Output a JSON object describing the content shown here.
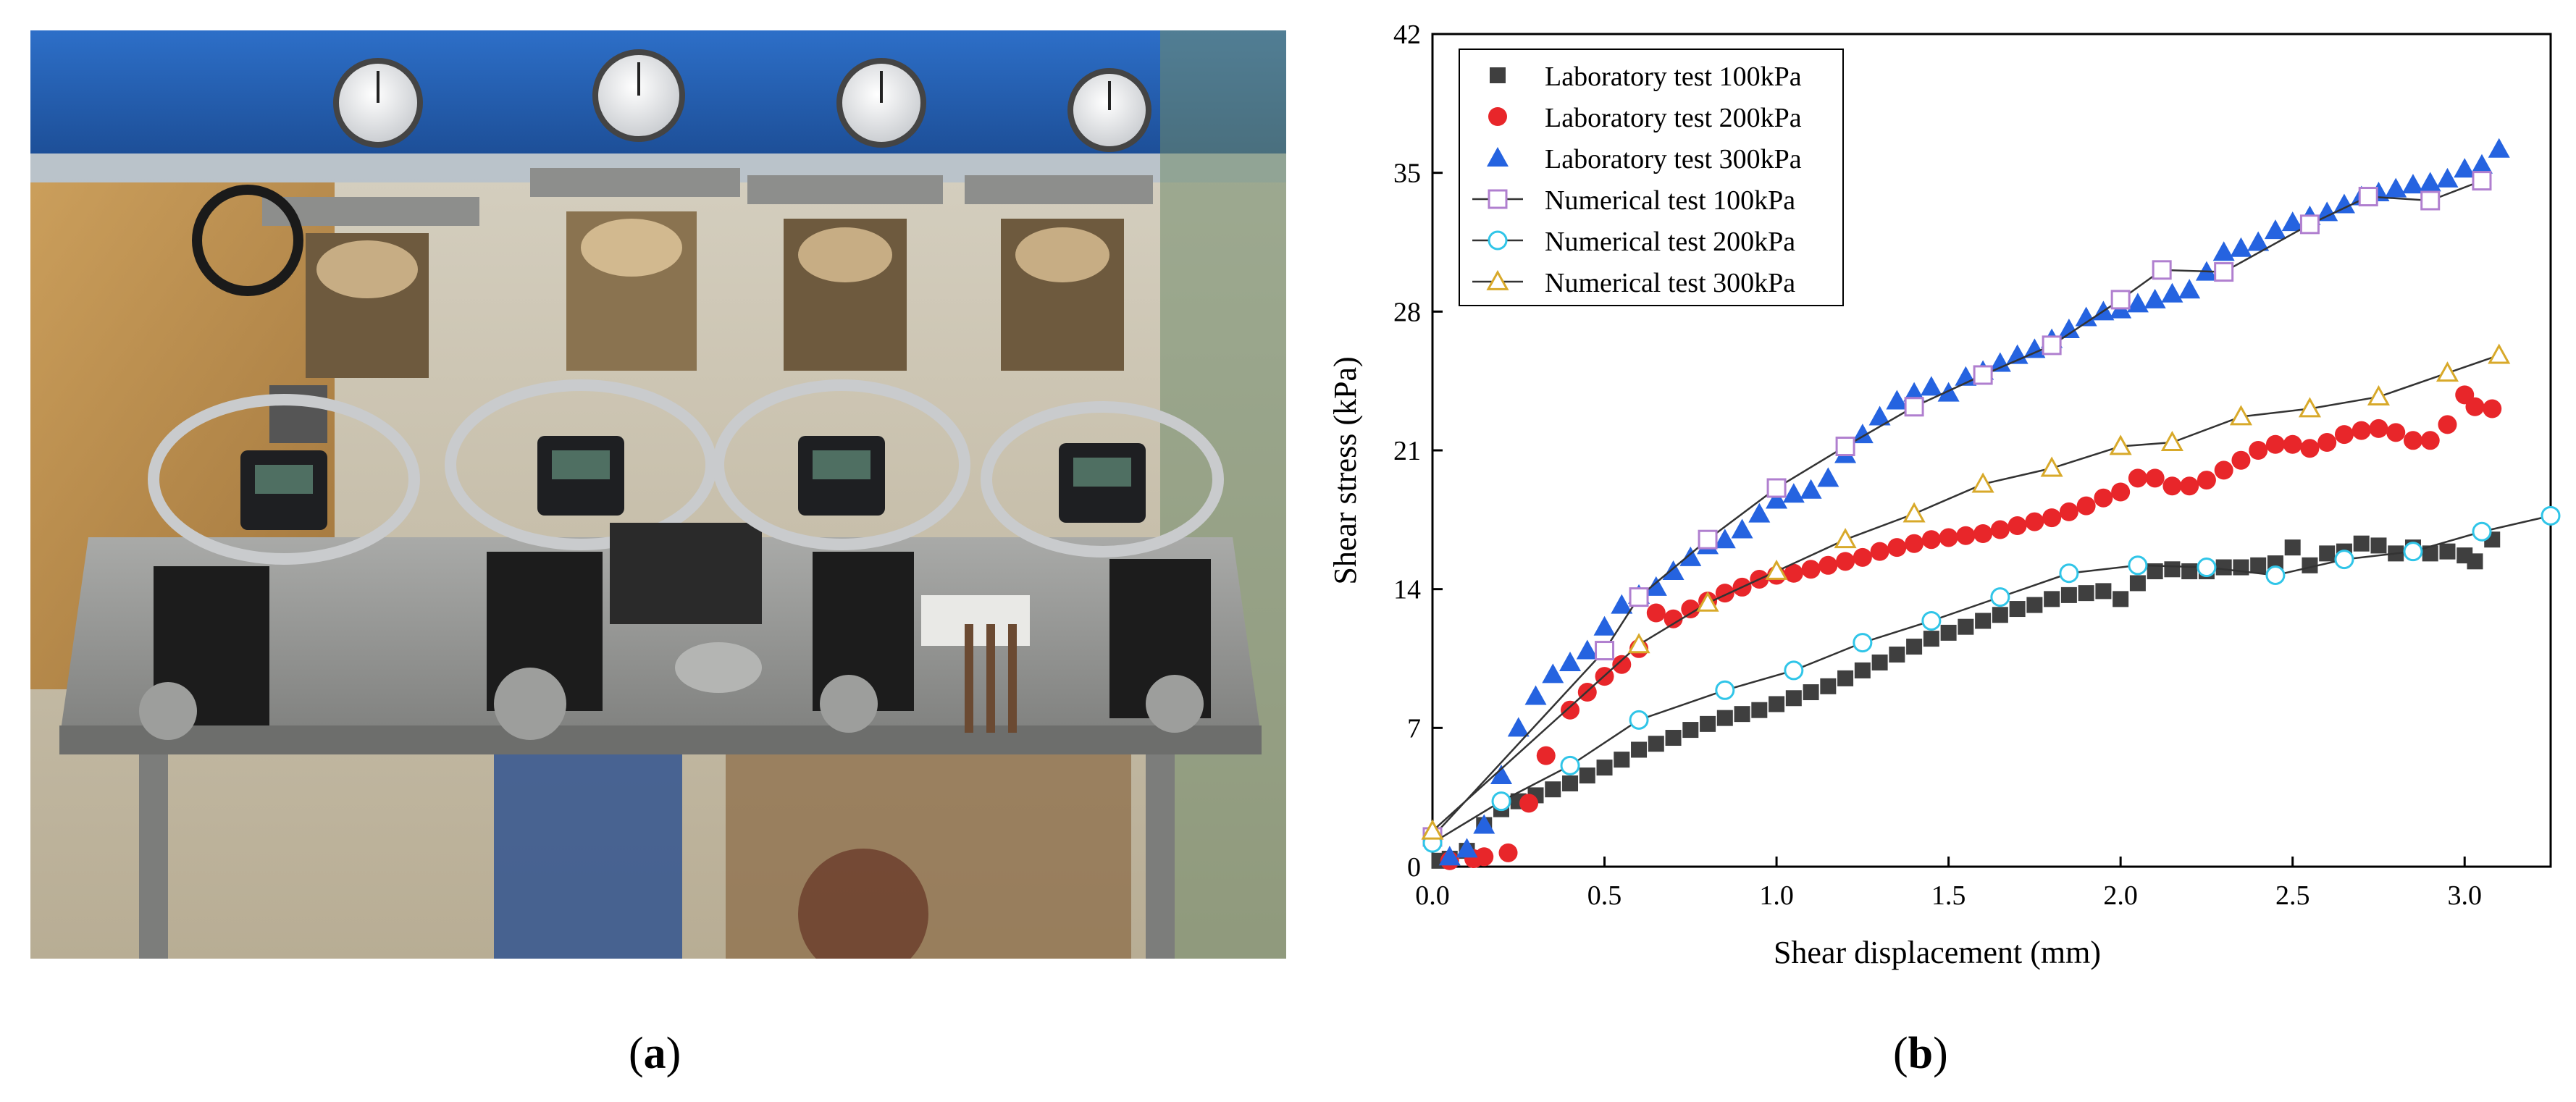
{
  "figure": {
    "panel_a_label": "a",
    "panel_b_label": "b",
    "photo_subject": "direct-shear-test-apparatus-photo"
  },
  "colors": {
    "lab_100": "#3f3f3f",
    "lab_200": "#e8262a",
    "lab_300": "#2563e0",
    "num_100": "#b07fcf",
    "num_200": "#30c5e8",
    "num_300": "#d8a92a",
    "num_line": "#333333"
  },
  "chart_data": {
    "type": "scatter",
    "xlabel": "Shear displacement (mm)",
    "ylabel": "Shear stress (kPa)",
    "xlim": [
      0.0,
      3.25
    ],
    "ylim": [
      0,
      42
    ],
    "xticks": [
      0.0,
      0.5,
      1.0,
      1.5,
      2.0,
      2.5,
      3.0
    ],
    "yticks": [
      0,
      7,
      14,
      21,
      28,
      35,
      42
    ],
    "xtick_labels": [
      "0.0",
      "0.5",
      "1.0",
      "1.5",
      "2.0",
      "2.5",
      "3.0"
    ],
    "ytick_labels": [
      "0",
      "7",
      "14",
      "21",
      "28",
      "35",
      "42"
    ],
    "grid": false,
    "legend_position": "top-left",
    "series": [
      {
        "name": "Laboratory test 100kPa",
        "kind": "lab",
        "marker": "square",
        "color_key": "lab_100",
        "x": [
          0.02,
          0.05,
          0.1,
          0.15,
          0.2,
          0.25,
          0.3,
          0.35,
          0.4,
          0.45,
          0.5,
          0.55,
          0.6,
          0.65,
          0.7,
          0.75,
          0.8,
          0.85,
          0.9,
          0.95,
          1.0,
          1.05,
          1.1,
          1.15,
          1.2,
          1.25,
          1.3,
          1.35,
          1.4,
          1.45,
          1.5,
          1.55,
          1.6,
          1.65,
          1.7,
          1.75,
          1.8,
          1.85,
          1.9,
          1.95,
          2.0,
          2.05,
          2.1,
          2.15,
          2.2,
          2.25,
          2.3,
          2.35,
          2.4,
          2.45,
          2.5,
          2.55,
          2.6,
          2.65,
          2.7,
          2.75,
          2.8,
          2.85,
          2.9,
          2.95,
          3.0,
          3.03,
          3.08
        ],
        "y": [
          0.3,
          0.4,
          0.8,
          2.1,
          2.9,
          3.3,
          3.6,
          3.9,
          4.2,
          4.6,
          5.0,
          5.4,
          5.9,
          6.2,
          6.5,
          6.9,
          7.2,
          7.5,
          7.7,
          7.9,
          8.2,
          8.5,
          8.8,
          9.1,
          9.5,
          9.9,
          10.3,
          10.7,
          11.1,
          11.5,
          11.8,
          12.1,
          12.4,
          12.7,
          13.0,
          13.2,
          13.5,
          13.7,
          13.8,
          13.9,
          13.5,
          14.3,
          14.9,
          15.0,
          14.9,
          14.9,
          15.1,
          15.1,
          15.2,
          15.3,
          16.1,
          15.2,
          15.8,
          15.9,
          16.3,
          16.2,
          15.8,
          16.1,
          15.8,
          15.9,
          15.7,
          15.4,
          16.5
        ]
      },
      {
        "name": "Laboratory test 200kPa",
        "kind": "lab",
        "marker": "circle",
        "color_key": "lab_200",
        "x": [
          0.05,
          0.12,
          0.15,
          0.22,
          0.28,
          0.33,
          0.4,
          0.45,
          0.5,
          0.55,
          0.6,
          0.65,
          0.7,
          0.75,
          0.8,
          0.85,
          0.9,
          0.95,
          1.0,
          1.05,
          1.1,
          1.15,
          1.2,
          1.25,
          1.3,
          1.35,
          1.4,
          1.45,
          1.5,
          1.55,
          1.6,
          1.65,
          1.7,
          1.75,
          1.8,
          1.85,
          1.9,
          1.95,
          2.0,
          2.05,
          2.1,
          2.15,
          2.2,
          2.25,
          2.3,
          2.35,
          2.4,
          2.45,
          2.5,
          2.55,
          2.6,
          2.65,
          2.7,
          2.75,
          2.8,
          2.85,
          2.9,
          2.95,
          3.0,
          3.03,
          3.08
        ],
        "y": [
          0.3,
          0.4,
          0.5,
          0.7,
          3.2,
          5.6,
          7.9,
          8.8,
          9.6,
          10.2,
          11.0,
          12.8,
          12.5,
          13.0,
          13.4,
          13.8,
          14.1,
          14.5,
          14.7,
          14.8,
          15.0,
          15.2,
          15.4,
          15.6,
          15.9,
          16.1,
          16.3,
          16.5,
          16.6,
          16.7,
          16.8,
          17.0,
          17.2,
          17.4,
          17.6,
          17.9,
          18.2,
          18.6,
          18.9,
          19.6,
          19.6,
          19.2,
          19.2,
          19.5,
          20.0,
          20.5,
          21.0,
          21.3,
          21.3,
          21.1,
          21.4,
          21.8,
          22.0,
          22.1,
          21.9,
          21.5,
          21.5,
          22.3,
          23.8,
          23.2,
          23.1
        ]
      },
      {
        "name": "Laboratory test 300kPa",
        "kind": "lab",
        "marker": "triangle",
        "color_key": "lab_300",
        "x": [
          0.05,
          0.1,
          0.15,
          0.2,
          0.25,
          0.3,
          0.35,
          0.4,
          0.45,
          0.5,
          0.55,
          0.6,
          0.65,
          0.7,
          0.75,
          0.8,
          0.85,
          0.9,
          0.95,
          1.0,
          1.05,
          1.1,
          1.15,
          1.2,
          1.25,
          1.3,
          1.35,
          1.4,
          1.45,
          1.5,
          1.55,
          1.6,
          1.65,
          1.7,
          1.75,
          1.8,
          1.85,
          1.9,
          1.95,
          2.0,
          2.05,
          2.1,
          2.15,
          2.2,
          2.25,
          2.3,
          2.35,
          2.4,
          2.45,
          2.5,
          2.55,
          2.6,
          2.65,
          2.7,
          2.75,
          2.8,
          2.85,
          2.9,
          2.95,
          3.0,
          3.05,
          3.1
        ],
        "y": [
          0.5,
          0.9,
          2.1,
          4.6,
          7.0,
          8.6,
          9.7,
          10.3,
          10.9,
          12.1,
          13.2,
          13.7,
          14.1,
          14.9,
          15.6,
          16.2,
          16.5,
          17.0,
          17.8,
          18.5,
          18.8,
          19.0,
          19.6,
          20.8,
          21.8,
          22.7,
          23.5,
          23.9,
          24.2,
          23.9,
          24.7,
          25.0,
          25.4,
          25.8,
          26.1,
          26.6,
          27.1,
          27.7,
          28.0,
          28.1,
          28.4,
          28.6,
          28.9,
          29.1,
          30.0,
          31.0,
          31.2,
          31.5,
          32.1,
          32.5,
          32.8,
          33.0,
          33.4,
          33.8,
          34.0,
          34.2,
          34.4,
          34.5,
          34.7,
          35.2,
          35.4,
          36.2
        ]
      },
      {
        "name": "Numerical test 100kPa",
        "kind": "num",
        "marker": "square-open",
        "color_key": "num_100",
        "x": [
          0.0,
          0.5,
          0.6,
          0.8,
          1.0,
          1.2,
          1.4,
          1.6,
          1.8,
          2.0,
          2.12,
          2.3,
          2.55,
          2.72,
          2.9,
          3.05
        ],
        "y": [
          1.5,
          10.9,
          13.6,
          16.5,
          19.1,
          21.2,
          23.2,
          24.8,
          26.3,
          28.6,
          30.1,
          30.0,
          32.4,
          33.8,
          33.6,
          34.6
        ]
      },
      {
        "name": "Numerical test 200kPa",
        "kind": "num",
        "marker": "circle-open",
        "color_key": "num_200",
        "x": [
          0.0,
          0.2,
          0.4,
          0.6,
          0.85,
          1.05,
          1.25,
          1.45,
          1.65,
          1.85,
          2.05,
          2.25,
          2.45,
          2.65,
          2.85,
          3.05,
          3.25
        ],
        "y": [
          1.2,
          3.3,
          5.1,
          7.4,
          8.9,
          9.9,
          11.3,
          12.4,
          13.6,
          14.8,
          15.2,
          15.1,
          14.7,
          15.5,
          15.9,
          16.9,
          17.7
        ]
      },
      {
        "name": "Numerical test 300kPa",
        "kind": "num",
        "marker": "triangle-open",
        "color_key": "num_300",
        "x": [
          0.0,
          0.6,
          0.8,
          1.0,
          1.2,
          1.4,
          1.6,
          1.8,
          2.0,
          2.15,
          2.35,
          2.55,
          2.75,
          2.95,
          3.1
        ],
        "y": [
          1.8,
          11.2,
          13.3,
          14.9,
          16.5,
          17.8,
          19.3,
          20.1,
          21.2,
          21.4,
          22.7,
          23.1,
          23.7,
          24.9,
          25.8
        ]
      }
    ]
  }
}
